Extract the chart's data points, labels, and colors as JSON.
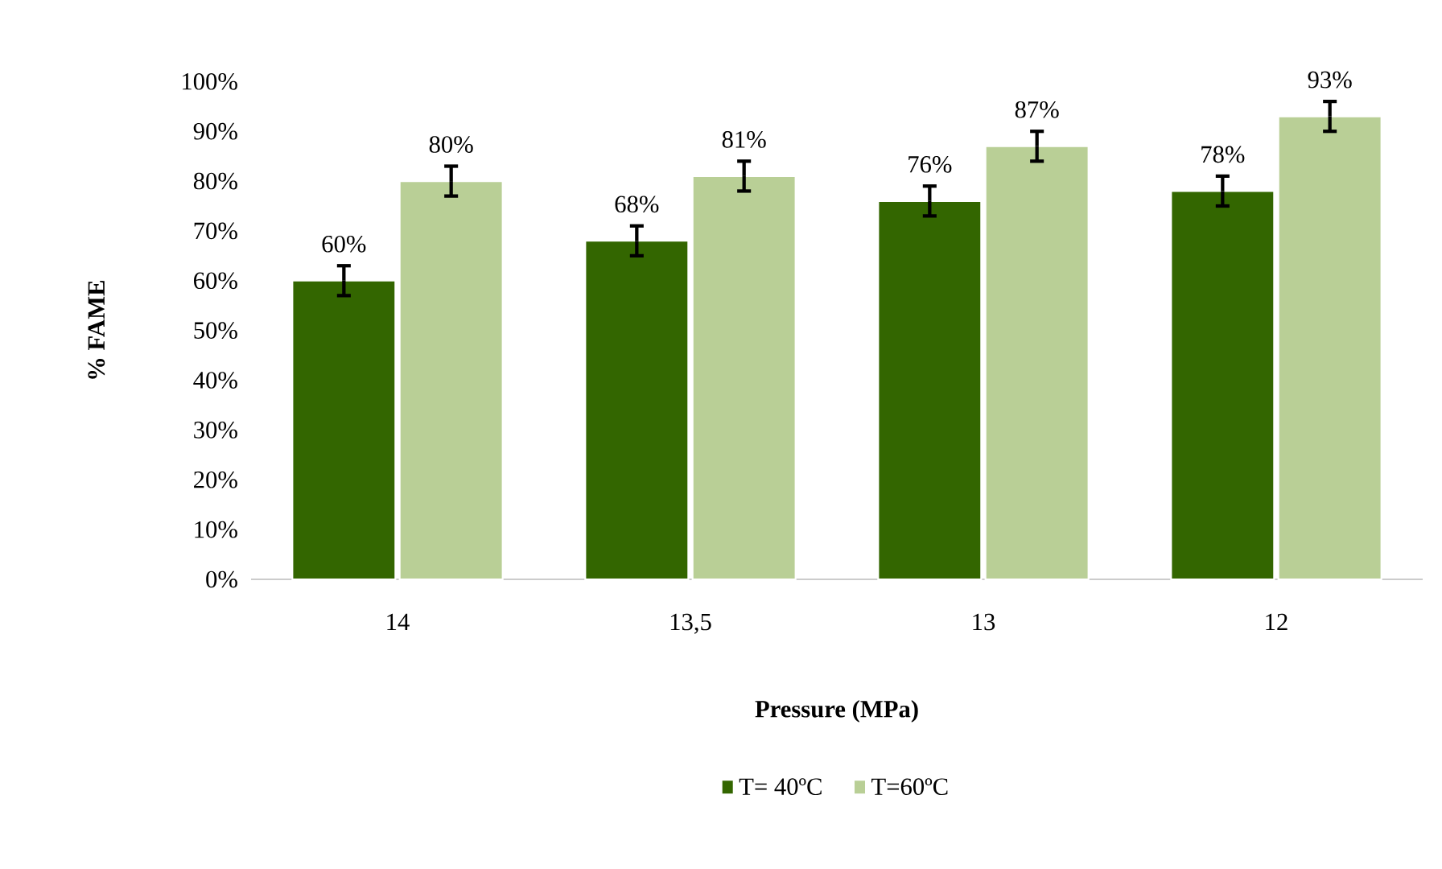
{
  "chart_data": {
    "type": "bar",
    "xlabel": "Pressure (MPa)",
    "ylabel": "% FAME",
    "categories": [
      "14",
      "13,5",
      "13",
      "12"
    ],
    "series": [
      {
        "name": "T= 40ºC",
        "color": "#336600",
        "values": [
          60,
          68,
          76,
          78
        ],
        "errors": [
          3,
          3,
          3,
          3
        ],
        "value_labels": [
          "60%",
          "68%",
          "76%",
          "78%"
        ]
      },
      {
        "name": "T=60ºC",
        "color": "#b9cf96",
        "values": [
          80,
          81,
          87,
          93
        ],
        "errors": [
          3,
          3,
          3,
          3
        ],
        "value_labels": [
          "80%",
          "81%",
          "87%",
          "93%"
        ]
      }
    ],
    "ylim": [
      0,
      100
    ],
    "yticks": [
      {
        "value": 0,
        "label": "0%"
      },
      {
        "value": 10,
        "label": "10%"
      },
      {
        "value": 20,
        "label": "20%"
      },
      {
        "value": 30,
        "label": "30%"
      },
      {
        "value": 40,
        "label": "40%"
      },
      {
        "value": 50,
        "label": "50%"
      },
      {
        "value": 60,
        "label": "60%"
      },
      {
        "value": 70,
        "label": "70%"
      },
      {
        "value": 80,
        "label": "80%"
      },
      {
        "value": 90,
        "label": "90%"
      },
      {
        "value": 100,
        "label": "100%"
      }
    ],
    "grid": false,
    "legend": "bottom"
  }
}
